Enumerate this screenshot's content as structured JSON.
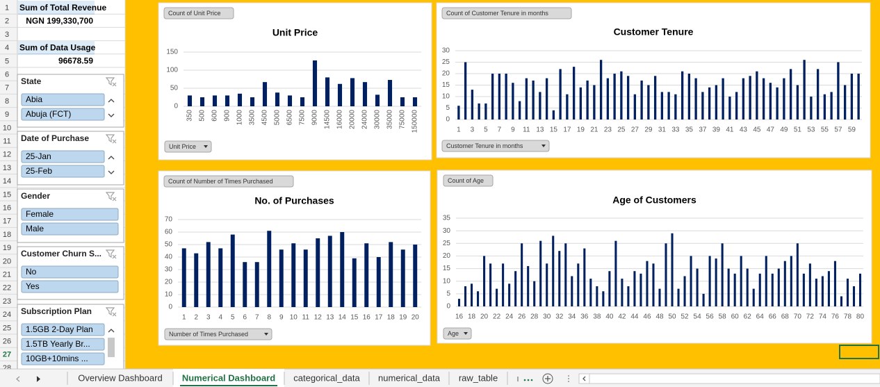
{
  "row_numbers": [
    1,
    2,
    3,
    4,
    5,
    6,
    7,
    8,
    9,
    10,
    11,
    12,
    13,
    14,
    15,
    16,
    17,
    18,
    19,
    20,
    21,
    22,
    23,
    24,
    25,
    26,
    27,
    28
  ],
  "active_row": 27,
  "pivots": [
    {
      "label": "Sum of Total Revenue",
      "value": "NGN 199,330,700"
    },
    {
      "label": "Sum of Data Usage",
      "value": "96678.59"
    }
  ],
  "slicers": [
    {
      "title": "State",
      "items": [
        "Abia",
        "Abuja (FCT)"
      ]
    },
    {
      "title": "Date of Purchase",
      "items": [
        "25-Jan",
        "25-Feb"
      ]
    },
    {
      "title": "Gender",
      "items": [
        "Female",
        "Male"
      ]
    },
    {
      "title": "Customer Churn S...",
      "items": [
        "No",
        "Yes"
      ]
    },
    {
      "title": "Subscription Plan",
      "items": [
        "1.5GB 2-Day Plan",
        "1.5TB Yearly Br...",
        "10GB+10mins ..."
      ]
    }
  ],
  "chart_data": [
    {
      "type": "bar",
      "title": "Unit Price",
      "field_button": "Count of Unit Price",
      "axis_button": "Unit Price",
      "color": "#002060",
      "categories": [
        350,
        500,
        600,
        900,
        1000,
        3500,
        4500,
        5000,
        6500,
        7500,
        9000,
        14500,
        16000,
        20000,
        24000,
        30000,
        35000,
        75000,
        150000
      ],
      "values": [
        30,
        25,
        30,
        30,
        35,
        25,
        67,
        38,
        30,
        25,
        127,
        80,
        62,
        78,
        67,
        32,
        73,
        25,
        25
      ],
      "ylim": [
        0,
        150
      ],
      "yticks": [
        0,
        50,
        100,
        150
      ],
      "grid": true
    },
    {
      "type": "bar",
      "title": "Customer Tenure",
      "field_button": "Count of Customer Tenure in months",
      "axis_button": "Customer Tenure in months",
      "color": "#002060",
      "categories": [
        1,
        null,
        3,
        null,
        5,
        null,
        7,
        null,
        9,
        null,
        11,
        null,
        13,
        null,
        15,
        null,
        17,
        null,
        19,
        null,
        21,
        null,
        23,
        null,
        25,
        null,
        27,
        null,
        29,
        null,
        31,
        null,
        33,
        null,
        35,
        null,
        37,
        null,
        39,
        null,
        41,
        null,
        43,
        null,
        45,
        null,
        47,
        null,
        49,
        null,
        51,
        null,
        53,
        null,
        55,
        null,
        57,
        null,
        59,
        null
      ],
      "values": [
        6,
        25,
        13,
        7,
        7,
        20,
        20,
        20,
        16,
        8,
        18,
        17,
        12,
        18,
        4,
        22,
        11,
        23,
        14,
        17,
        15,
        26,
        18,
        20,
        21,
        19,
        11,
        17,
        15,
        19,
        12,
        12,
        11,
        21,
        20,
        18,
        12,
        14,
        15,
        18,
        10,
        12,
        18,
        19,
        21,
        18,
        16,
        14,
        18,
        22,
        15,
        26,
        10,
        22,
        11,
        12,
        25,
        15,
        20,
        20
      ],
      "ylim": [
        0,
        30
      ],
      "yticks": [
        0,
        5,
        10,
        15,
        20,
        25,
        30
      ],
      "grid": true
    },
    {
      "type": "bar",
      "title": "No. of Purchases",
      "field_button": "Count of Number of Times Purchased",
      "axis_button": "Number of Times Purchased",
      "color": "#002060",
      "categories": [
        1,
        2,
        3,
        4,
        5,
        6,
        7,
        8,
        9,
        10,
        11,
        12,
        13,
        14,
        15,
        16,
        17,
        18,
        19,
        20
      ],
      "values": [
        47,
        43,
        52,
        47,
        58,
        36,
        36,
        61,
        46,
        51,
        46,
        55,
        57,
        60,
        39,
        51,
        40,
        52,
        46,
        50
      ],
      "ylim": [
        0,
        70
      ],
      "yticks": [
        0,
        10,
        20,
        30,
        40,
        50,
        60,
        70
      ],
      "grid": true
    },
    {
      "type": "bar",
      "title": "Age of Customers",
      "field_button": "Count of Age",
      "axis_button": "Age",
      "color": "#002060",
      "categories": [
        16,
        null,
        18,
        null,
        20,
        null,
        22,
        null,
        24,
        null,
        26,
        null,
        28,
        null,
        30,
        null,
        32,
        null,
        34,
        null,
        36,
        null,
        38,
        null,
        40,
        null,
        42,
        null,
        44,
        null,
        46,
        null,
        48,
        null,
        50,
        null,
        52,
        null,
        54,
        null,
        56,
        null,
        58,
        null,
        60,
        null,
        62,
        null,
        64,
        null,
        66,
        null,
        68,
        null,
        70,
        null,
        72,
        null,
        74,
        null,
        76,
        null,
        78,
        null,
        80
      ],
      "values": [
        3,
        8,
        9,
        6,
        20,
        17,
        7,
        17,
        9,
        14,
        25,
        16,
        10,
        26,
        17,
        28,
        22,
        25,
        12,
        17,
        23,
        11,
        8,
        6,
        14,
        26,
        11,
        8,
        14,
        13,
        18,
        17,
        7,
        25,
        29,
        7,
        12,
        20,
        15,
        5,
        20,
        19,
        25,
        15,
        13,
        20,
        15,
        7,
        13,
        20,
        13,
        15,
        18,
        20,
        25,
        13,
        17,
        11,
        12,
        14,
        18,
        4,
        11,
        8,
        13
      ],
      "ylim": [
        0,
        35
      ],
      "yticks": [
        0,
        5,
        10,
        15,
        20,
        25,
        30,
        35
      ],
      "grid": true
    }
  ],
  "tabs": [
    "Overview Dashboard",
    "Numerical Dashboard",
    "categorical_data",
    "numerical_data",
    "raw_table"
  ],
  "active_tab": 1
}
